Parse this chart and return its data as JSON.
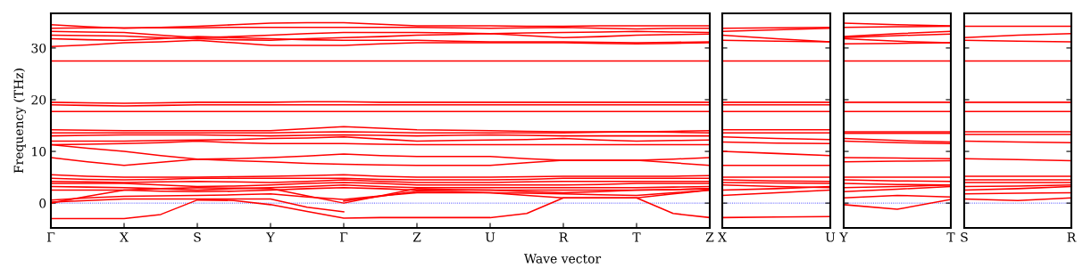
{
  "chart_data": [
    {
      "type": "line",
      "xlabel": "Wave vector",
      "ylabel": "Frequency (THz)",
      "ylim": [
        -4.8,
        36.7
      ],
      "yticks": [
        0,
        10,
        20,
        30
      ],
      "categories": [
        "Γ",
        null,
        "X",
        null,
        "S",
        null,
        "Y",
        null,
        "Γ",
        null,
        "Z",
        null,
        "U",
        null,
        "R",
        null,
        "T",
        null,
        "Z"
      ],
      "ref_lines": [
        {
          "axis": "y",
          "value": 0,
          "color": "#0000ff",
          "line_style": "dotted"
        }
      ],
      "series": [
        {
          "color": "#ff0000",
          "values": [
            34.5,
            34.1,
            33.8,
            34.0,
            34.2,
            34.5,
            34.8,
            34.9,
            34.9,
            34.6,
            34.3,
            34.3,
            34.3,
            34.2,
            34.2,
            34.3,
            34.3,
            34.3,
            34.3
          ]
        },
        {
          "color": "#ff0000",
          "values": [
            33.8,
            33.9,
            33.9,
            33.9,
            33.9,
            34.0,
            34.0,
            34.0,
            34.0,
            34.0,
            34.0,
            33.9,
            33.8,
            33.9,
            34.0,
            33.8,
            33.7,
            33.8,
            33.8
          ]
        },
        {
          "color": "#ff0000",
          "values": [
            33.2,
            33.1,
            33.0,
            32.5,
            32.0,
            32.2,
            32.5,
            32.8,
            33.0,
            33.0,
            33.0,
            32.9,
            32.8,
            32.9,
            33.0,
            33.1,
            33.2,
            33.1,
            33.0
          ]
        },
        {
          "color": "#ff0000",
          "values": [
            32.5,
            32.4,
            32.3,
            32.0,
            31.8,
            31.6,
            31.5,
            31.8,
            32.0,
            32.2,
            32.5,
            32.6,
            32.8,
            32.4,
            32.0,
            32.2,
            32.5,
            32.6,
            32.7
          ]
        },
        {
          "color": "#ff0000",
          "values": [
            31.8,
            31.6,
            31.5,
            31.8,
            32.2,
            32.0,
            31.8,
            31.6,
            31.5,
            31.5,
            31.5,
            31.3,
            31.2,
            31.2,
            31.2,
            31.1,
            31.0,
            31.1,
            31.2
          ]
        },
        {
          "color": "#ff0000",
          "values": [
            30.3,
            30.6,
            31.0,
            31.2,
            31.5,
            31.0,
            30.5,
            30.5,
            30.5,
            30.8,
            31.0,
            31.0,
            31.0,
            31.0,
            31.0,
            30.9,
            30.8,
            30.9,
            31.0
          ]
        },
        {
          "color": "#ff0000",
          "values": [
            27.5,
            27.5,
            27.5,
            27.5,
            27.5,
            27.5,
            27.5,
            27.5,
            27.5,
            27.5,
            27.5,
            27.5,
            27.5,
            27.5,
            27.5,
            27.5,
            27.5,
            27.5,
            27.5
          ]
        },
        {
          "color": "#ff0000",
          "values": [
            19.5,
            19.4,
            19.3,
            19.4,
            19.5,
            19.5,
            19.5,
            19.6,
            19.6,
            19.5,
            19.5,
            19.5,
            19.5,
            19.5,
            19.5,
            19.5,
            19.5,
            19.5,
            19.5
          ]
        },
        {
          "color": "#ff0000",
          "values": [
            19.0,
            18.9,
            18.8,
            18.9,
            19.0,
            19.0,
            19.0,
            19.0,
            19.0,
            19.0,
            19.0,
            19.0,
            19.0,
            19.0,
            19.0,
            19.0,
            19.0,
            19.0,
            19.0
          ]
        },
        {
          "color": "#ff0000",
          "values": [
            17.7,
            17.7,
            17.7,
            17.7,
            17.7,
            17.7,
            17.7,
            17.7,
            17.7,
            17.7,
            17.7,
            17.7,
            17.7,
            17.7,
            17.7,
            17.7,
            17.7,
            17.7,
            17.7
          ]
        },
        {
          "color": "#ff0000",
          "values": [
            14.2,
            14.1,
            14.0,
            14.0,
            14.0,
            14.0,
            14.0,
            14.4,
            14.8,
            14.5,
            14.2,
            14.1,
            14.0,
            13.9,
            13.8,
            13.8,
            13.8,
            13.9,
            14.0
          ]
        },
        {
          "color": "#ff0000",
          "values": [
            13.6,
            13.6,
            13.6,
            13.6,
            13.6,
            13.6,
            13.6,
            13.7,
            13.8,
            13.7,
            13.6,
            13.6,
            13.6,
            13.6,
            13.6,
            13.7,
            13.8,
            13.7,
            13.6
          ]
        },
        {
          "color": "#ff0000",
          "values": [
            13.0,
            13.1,
            13.2,
            13.2,
            13.2,
            13.1,
            13.0,
            13.1,
            13.2,
            13.1,
            13.0,
            13.1,
            13.2,
            13.1,
            13.0,
            13.0,
            13.0,
            13.0,
            13.0
          ]
        },
        {
          "color": "#ff0000",
          "values": [
            12.0,
            12.0,
            12.0,
            12.1,
            12.2,
            12.3,
            12.5,
            12.6,
            12.8,
            12.4,
            12.0,
            12.1,
            12.2,
            12.3,
            12.5,
            12.2,
            12.0,
            12.1,
            12.2
          ]
        },
        {
          "color": "#ff0000",
          "values": [
            11.3,
            11.4,
            11.5,
            11.7,
            12.0,
            11.7,
            11.5,
            11.5,
            11.5,
            11.4,
            11.3,
            11.3,
            11.3,
            11.3,
            11.3,
            11.3,
            11.3,
            11.3,
            11.3
          ]
        },
        {
          "color": "#ff0000",
          "values": [
            11.3,
            10.6,
            10.0,
            9.2,
            8.5,
            8.6,
            8.8,
            9.1,
            9.5,
            9.2,
            9.0,
            9.0,
            9.0,
            8.6,
            8.3,
            8.3,
            8.3,
            8.5,
            8.8
          ]
        },
        {
          "color": "#ff0000",
          "values": [
            8.8,
            8.0,
            7.3,
            7.9,
            8.5,
            8.2,
            8.0,
            7.7,
            7.5,
            7.4,
            7.3,
            7.3,
            7.3,
            7.8,
            8.3,
            8.3,
            8.3,
            7.8,
            7.3
          ]
        },
        {
          "color": "#ff0000",
          "values": [
            5.5,
            5.2,
            5.0,
            5.0,
            5.0,
            5.1,
            5.2,
            5.3,
            5.5,
            5.2,
            5.0,
            5.0,
            5.0,
            5.1,
            5.2,
            5.2,
            5.2,
            5.2,
            5.3
          ]
        },
        {
          "color": "#ff0000",
          "values": [
            4.8,
            4.6,
            4.5,
            4.6,
            4.8,
            4.8,
            4.8,
            4.8,
            4.8,
            4.6,
            4.5,
            4.5,
            4.5,
            4.6,
            4.8,
            4.8,
            4.8,
            4.8,
            4.8
          ]
        },
        {
          "color": "#ff0000",
          "values": [
            4.2,
            4.1,
            4.0,
            4.1,
            4.2,
            4.1,
            4.0,
            4.2,
            4.5,
            4.2,
            4.0,
            4.0,
            4.0,
            4.1,
            4.2,
            4.2,
            4.2,
            4.2,
            4.2
          ]
        },
        {
          "color": "#ff0000",
          "values": [
            3.8,
            3.8,
            3.8,
            3.5,
            3.2,
            3.3,
            3.5,
            3.8,
            4.0,
            3.8,
            3.5,
            3.5,
            3.5,
            3.5,
            3.5,
            3.6,
            3.8,
            3.8,
            3.8
          ]
        },
        {
          "color": "#ff0000",
          "values": [
            3.2,
            3.1,
            3.0,
            2.8,
            2.5,
            2.8,
            3.0,
            3.2,
            3.5,
            3.2,
            3.0,
            3.0,
            3.0,
            3.0,
            3.0,
            3.0,
            3.0,
            3.1,
            3.2
          ]
        },
        {
          "color": "#ff0000",
          "values": [
            2.5,
            2.5,
            2.5,
            2.3,
            2.2,
            2.3,
            2.5,
            2.8,
            3.0,
            2.8,
            2.5,
            2.5,
            2.5,
            2.5,
            2.5,
            2.5,
            2.5,
            2.6,
            2.8
          ]
        },
        {
          "color": "#ff0000",
          "values": [
            0,
            1.3,
            2.5,
            2.8,
            3.0,
            2.9,
            2.8,
            1.4,
            0,
            1.4,
            2.8,
            2.6,
            2.5,
            2.2,
            2.0,
            2.2,
            2.5,
            2.6,
            2.8
          ]
        },
        {
          "color": "#ff0000",
          "values": [
            0.6,
            1.0,
            1.3,
            1.4,
            1.5,
            1.6,
            1.8,
            1.2,
            0.7,
            1.4,
            2.0,
            2.0,
            2.0,
            1.9,
            1.8,
            1.6,
            1.5,
            2.0,
            2.5
          ]
        },
        {
          "color": "#ff0000",
          "values": [
            -3,
            -3,
            -3,
            -2.2,
            0.6,
            0.5,
            -0.3,
            -1.6,
            -2.9,
            -2.8,
            -2.8,
            -2.8,
            -2.8,
            -2.0,
            1.0,
            1.0,
            1.0,
            -2.0,
            -2.8
          ]
        },
        {
          "color": "#ff0000",
          "values": [
            0.2,
            0.5,
            0.8,
            0.8,
            0.8,
            0.8,
            0.8,
            -0.8,
            -1.7,
            null,
            null,
            null,
            null,
            null,
            null,
            null,
            null,
            null,
            null
          ]
        },
        {
          "color": "#ff0000",
          "values": [
            null,
            null,
            null,
            null,
            null,
            null,
            null,
            null,
            0.4,
            1.3,
            2.3,
            2.2,
            2.0,
            1.5,
            1.0,
            1.0,
            1.0,
            1.8,
            2.5
          ]
        }
      ]
    },
    {
      "type": "line",
      "tick_labels": "x",
      "ylim": [
        -4.8,
        36.7
      ],
      "yticks": [
        0,
        10,
        20,
        30
      ],
      "categories": [
        "X",
        null,
        "U"
      ],
      "ref_lines": [
        {
          "axis": "y",
          "value": 0,
          "color": "#0000ff",
          "line_style": "dotted"
        }
      ],
      "series": [
        {
          "color": "#ff0000",
          "values": [
            33.8,
            33.9,
            34.0
          ]
        },
        {
          "color": "#ff0000",
          "values": [
            33.2,
            33.5,
            33.8
          ]
        },
        {
          "color": "#ff0000",
          "values": [
            32.5,
            31.8,
            31.2
          ]
        },
        {
          "color": "#ff0000",
          "values": [
            31.5,
            31.3,
            31.2
          ]
        },
        {
          "color": "#ff0000",
          "values": [
            27.5,
            27.5,
            27.5
          ]
        },
        {
          "color": "#ff0000",
          "values": [
            19.5,
            19.5,
            19.5
          ]
        },
        {
          "color": "#ff0000",
          "values": [
            19.0,
            19.0,
            19.0
          ]
        },
        {
          "color": "#ff0000",
          "values": [
            17.7,
            17.7,
            17.7
          ]
        },
        {
          "color": "#ff0000",
          "values": [
            14.2,
            14.2,
            14.2
          ]
        },
        {
          "color": "#ff0000",
          "values": [
            13.6,
            13.6,
            13.6
          ]
        },
        {
          "color": "#ff0000",
          "values": [
            12.8,
            12.5,
            12.3
          ]
        },
        {
          "color": "#ff0000",
          "values": [
            11.8,
            11.6,
            11.5
          ]
        },
        {
          "color": "#ff0000",
          "values": [
            10.0,
            9.6,
            9.2
          ]
        },
        {
          "color": "#ff0000",
          "values": [
            7.3,
            7.3,
            7.3
          ]
        },
        {
          "color": "#ff0000",
          "values": [
            5.0,
            5.0,
            5.0
          ]
        },
        {
          "color": "#ff0000",
          "values": [
            4.5,
            4.3,
            4.2
          ]
        },
        {
          "color": "#ff0000",
          "values": [
            4.0,
            3.9,
            3.8
          ]
        },
        {
          "color": "#ff0000",
          "values": [
            3.5,
            3.2,
            3.0
          ]
        },
        {
          "color": "#ff0000",
          "values": [
            2.5,
            2.8,
            3.2
          ]
        },
        {
          "color": "#ff0000",
          "values": [
            1.5,
            2.0,
            2.5
          ]
        },
        {
          "color": "#ff0000",
          "values": [
            -2.8,
            -2.7,
            -2.6
          ]
        }
      ]
    },
    {
      "type": "line",
      "tick_labels": "x",
      "ylim": [
        -4.8,
        36.7
      ],
      "yticks": [
        0,
        10,
        20,
        30
      ],
      "categories": [
        "Y",
        null,
        "T"
      ],
      "ref_lines": [
        {
          "axis": "y",
          "value": 0,
          "color": "#0000ff",
          "line_style": "dotted"
        }
      ],
      "series": [
        {
          "color": "#ff0000",
          "values": [
            34.8,
            34.5,
            34.3
          ]
        },
        {
          "color": "#ff0000",
          "values": [
            34.0,
            34.1,
            34.2
          ]
        },
        {
          "color": "#ff0000",
          "values": [
            32.2,
            32.8,
            33.2
          ]
        },
        {
          "color": "#ff0000",
          "values": [
            32.0,
            32.4,
            32.7
          ]
        },
        {
          "color": "#ff0000",
          "values": [
            31.8,
            31.3,
            31.0
          ]
        },
        {
          "color": "#ff0000",
          "values": [
            30.8,
            30.9,
            31.0
          ]
        },
        {
          "color": "#ff0000",
          "values": [
            27.5,
            27.5,
            27.5
          ]
        },
        {
          "color": "#ff0000",
          "values": [
            19.5,
            19.5,
            19.5
          ]
        },
        {
          "color": "#ff0000",
          "values": [
            17.7,
            17.7,
            17.7
          ]
        },
        {
          "color": "#ff0000",
          "values": [
            13.8,
            13.8,
            13.8
          ]
        },
        {
          "color": "#ff0000",
          "values": [
            13.5,
            13.5,
            13.5
          ]
        },
        {
          "color": "#ff0000",
          "values": [
            12.5,
            12.1,
            11.8
          ]
        },
        {
          "color": "#ff0000",
          "values": [
            12.0,
            11.7,
            11.5
          ]
        },
        {
          "color": "#ff0000",
          "values": [
            8.8,
            8.7,
            8.6
          ]
        },
        {
          "color": "#ff0000",
          "values": [
            8.0,
            8.1,
            8.2
          ]
        },
        {
          "color": "#ff0000",
          "values": [
            5.0,
            5.0,
            5.0
          ]
        },
        {
          "color": "#ff0000",
          "values": [
            4.5,
            4.3,
            4.2
          ]
        },
        {
          "color": "#ff0000",
          "values": [
            3.8,
            3.6,
            3.5
          ]
        },
        {
          "color": "#ff0000",
          "values": [
            3.0,
            3.2,
            3.5
          ]
        },
        {
          "color": "#ff0000",
          "values": [
            2.2,
            2.7,
            3.2
          ]
        },
        {
          "color": "#ff0000",
          "values": [
            1.0,
            1.5,
            1.2
          ]
        },
        {
          "color": "#ff0000",
          "values": [
            -0.3,
            -1.2,
            0.7
          ]
        }
      ]
    },
    {
      "type": "line",
      "tick_labels": "x",
      "ylim": [
        -4.8,
        36.7
      ],
      "yticks": [
        0,
        10,
        20,
        30
      ],
      "categories": [
        "S",
        null,
        "R"
      ],
      "ref_lines": [
        {
          "axis": "y",
          "value": 0,
          "color": "#0000ff",
          "line_style": "dotted"
        }
      ],
      "series": [
        {
          "color": "#ff0000",
          "values": [
            34.2,
            34.2,
            34.2
          ]
        },
        {
          "color": "#ff0000",
          "values": [
            32.0,
            32.5,
            32.8
          ]
        },
        {
          "color": "#ff0000",
          "values": [
            31.5,
            31.3,
            31.2
          ]
        },
        {
          "color": "#ff0000",
          "values": [
            27.5,
            27.5,
            27.5
          ]
        },
        {
          "color": "#ff0000",
          "values": [
            19.5,
            19.5,
            19.5
          ]
        },
        {
          "color": "#ff0000",
          "values": [
            17.7,
            17.7,
            17.7
          ]
        },
        {
          "color": "#ff0000",
          "values": [
            13.8,
            13.8,
            13.8
          ]
        },
        {
          "color": "#ff0000",
          "values": [
            13.3,
            13.3,
            13.3
          ]
        },
        {
          "color": "#ff0000",
          "values": [
            12.0,
            11.8,
            11.7
          ]
        },
        {
          "color": "#ff0000",
          "values": [
            8.6,
            8.4,
            8.2
          ]
        },
        {
          "color": "#ff0000",
          "values": [
            5.2,
            5.2,
            5.2
          ]
        },
        {
          "color": "#ff0000",
          "values": [
            4.5,
            4.5,
            4.5
          ]
        },
        {
          "color": "#ff0000",
          "values": [
            4.0,
            4.0,
            4.0
          ]
        },
        {
          "color": "#ff0000",
          "values": [
            3.2,
            3.3,
            3.5
          ]
        },
        {
          "color": "#ff0000",
          "values": [
            2.5,
            2.8,
            3.2
          ]
        },
        {
          "color": "#ff0000",
          "values": [
            1.8,
            1.9,
            2.0
          ]
        },
        {
          "color": "#ff0000",
          "values": [
            0.8,
            0.5,
            1.0
          ]
        }
      ]
    }
  ]
}
